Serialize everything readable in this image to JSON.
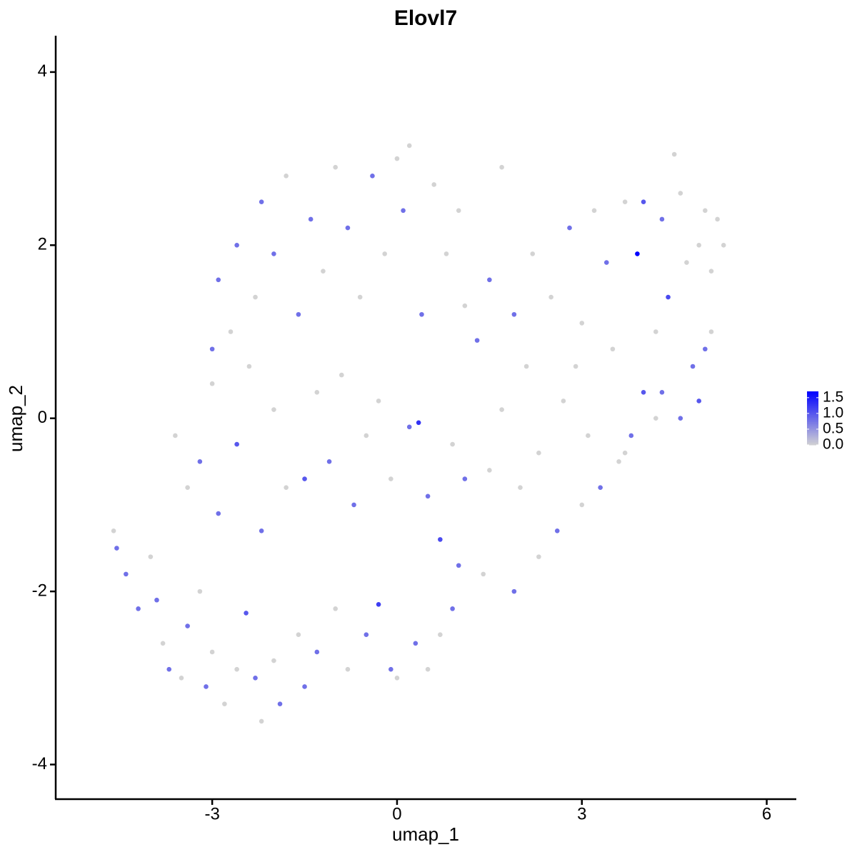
{
  "chart_data": {
    "type": "scatter",
    "title": "Elovl7",
    "x_label": "umap_1",
    "y_label": "umap_2",
    "xlim": [
      -5.54,
      6.48
    ],
    "xticks": [
      -3,
      0,
      3,
      6
    ],
    "ylim": [
      -4.4,
      4.42
    ],
    "yticks": [
      -4,
      -2,
      0,
      2,
      4
    ],
    "low_color": "#d3d3d3",
    "high_color": "#0000ff",
    "colorbar": {
      "lim": [
        0,
        1.7
      ],
      "ticks": [
        {
          "value": 0,
          "label": "0.0"
        },
        0.5,
        {
          "value": 1,
          "label": "1.0"
        },
        1.5
      ]
    },
    "x": [
      -4.6,
      -4.55,
      -4.4,
      -4.2,
      -4.0,
      -3.9,
      -3.8,
      -3.7,
      -3.5,
      -3.4,
      -3.2,
      -3.1,
      -3.0,
      -2.8,
      -2.6,
      -2.45,
      -2.3,
      -2.2,
      -2.0,
      -1.9,
      -1.6,
      -1.5,
      -1.3,
      -1.0,
      -0.8,
      -0.5,
      -0.3,
      -0.1,
      0.0,
      0.3,
      0.5,
      0.7,
      0.9,
      1.0,
      1.4,
      1.9,
      2.3,
      2.6,
      3.0,
      3.3,
      3.6,
      3.8,
      4.2,
      4.6,
      4.9,
      5.0,
      5.1,
      -3.6,
      -3.4,
      -3.2,
      -3.0,
      -2.9,
      -2.6,
      -2.4,
      -2.2,
      -2.0,
      -1.8,
      -1.5,
      -1.3,
      -1.1,
      -0.9,
      -0.7,
      -0.5,
      -0.3,
      -0.1,
      0.2,
      0.35,
      0.5,
      0.7,
      0.9,
      1.1,
      1.5,
      1.7,
      2.0,
      2.3,
      2.7,
      -3.0,
      -2.9,
      -2.7,
      -2.6,
      -2.3,
      -2.2,
      -2.0,
      -1.8,
      -1.6,
      -1.4,
      -1.2,
      -1.0,
      -0.8,
      -0.6,
      -0.4,
      -0.2,
      0.0,
      0.2,
      0.1,
      0.4,
      0.6,
      0.8,
      1.0,
      1.1,
      1.3,
      1.5,
      1.7,
      1.9,
      2.1,
      2.2,
      2.5,
      2.8,
      3.0,
      3.2,
      3.4,
      3.5,
      3.7,
      3.9,
      4.0,
      4.2,
      4.3,
      4.4,
      4.5,
      4.6,
      4.7,
      4.8,
      4.9,
      5.0,
      5.1,
      5.2,
      5.3,
      4.3,
      4.0,
      3.7,
      2.9,
      3.1
    ],
    "y": [
      -1.3,
      -1.5,
      -1.8,
      -2.2,
      -1.6,
      -2.1,
      -2.6,
      -2.9,
      -3.0,
      -2.4,
      -2.0,
      -3.1,
      -2.7,
      -3.3,
      -2.9,
      -2.25,
      -3.0,
      -3.5,
      -2.8,
      -3.3,
      -2.5,
      -3.1,
      -2.7,
      -2.2,
      -2.9,
      -2.5,
      -2.15,
      -2.9,
      -3.0,
      -2.6,
      -2.9,
      -2.5,
      -2.2,
      -1.7,
      -1.8,
      -2.0,
      -1.6,
      -1.3,
      -1.0,
      -0.8,
      -0.5,
      -0.2,
      0.0,
      0.0,
      0.2,
      0.8,
      1.0,
      -0.2,
      -0.8,
      -0.5,
      0.4,
      -1.1,
      -0.3,
      0.6,
      -1.3,
      0.1,
      -0.8,
      -0.7,
      0.3,
      -0.5,
      0.5,
      -1.0,
      -0.2,
      0.2,
      -0.7,
      -0.1,
      -0.05,
      -0.9,
      -1.4,
      -0.3,
      -0.7,
      -0.6,
      0.1,
      -0.8,
      -0.4,
      0.2,
      0.8,
      1.6,
      1.0,
      2.0,
      1.4,
      2.5,
      1.9,
      2.8,
      1.2,
      2.3,
      1.7,
      2.9,
      2.2,
      1.4,
      2.8,
      1.9,
      3.0,
      3.15,
      2.4,
      1.2,
      2.7,
      1.9,
      2.4,
      1.3,
      0.9,
      1.6,
      2.9,
      1.2,
      0.6,
      1.9,
      1.4,
      2.2,
      1.1,
      2.4,
      1.8,
      0.8,
      2.5,
      1.9,
      2.5,
      1.0,
      2.3,
      1.4,
      3.05,
      2.6,
      1.8,
      0.6,
      2.0,
      2.4,
      1.7,
      2.3,
      2.0,
      0.3,
      0.3,
      -0.4,
      0.6,
      -0.2
    ],
    "expression": [
      0,
      0.8,
      0.8,
      0.8,
      0,
      0.8,
      0,
      0.8,
      0,
      0.8,
      0,
      0.8,
      0,
      0,
      0,
      1.0,
      0.8,
      0,
      0,
      0.8,
      0,
      0.8,
      0.8,
      0,
      0,
      0.8,
      1.2,
      0.8,
      0,
      0.8,
      0,
      0,
      0.8,
      0.8,
      0,
      0.8,
      0,
      0.8,
      0,
      0.8,
      0,
      0.8,
      0,
      0.8,
      1.0,
      0.8,
      0,
      0,
      0,
      0.8,
      0,
      0.8,
      1.0,
      0,
      0.8,
      0,
      0,
      1.0,
      0,
      0.8,
      0,
      0.8,
      0,
      0,
      0,
      0.8,
      1.3,
      0.8,
      1.1,
      0,
      0.8,
      0,
      0,
      0,
      0,
      0,
      0.8,
      0.8,
      0,
      0.8,
      0,
      0.8,
      0.8,
      0,
      0.8,
      0.8,
      0,
      0,
      0.8,
      0,
      0.8,
      0,
      0,
      0,
      0.8,
      0.8,
      0,
      0,
      0,
      0,
      0.8,
      0.8,
      0,
      0.8,
      0,
      0,
      0,
      0.8,
      0,
      0,
      0.8,
      0,
      0,
      1.7,
      1.0,
      0,
      0.8,
      1.1,
      0,
      0,
      0,
      0.8,
      0,
      0,
      0,
      0,
      0,
      0.8,
      1.0,
      0,
      0,
      0
    ]
  }
}
